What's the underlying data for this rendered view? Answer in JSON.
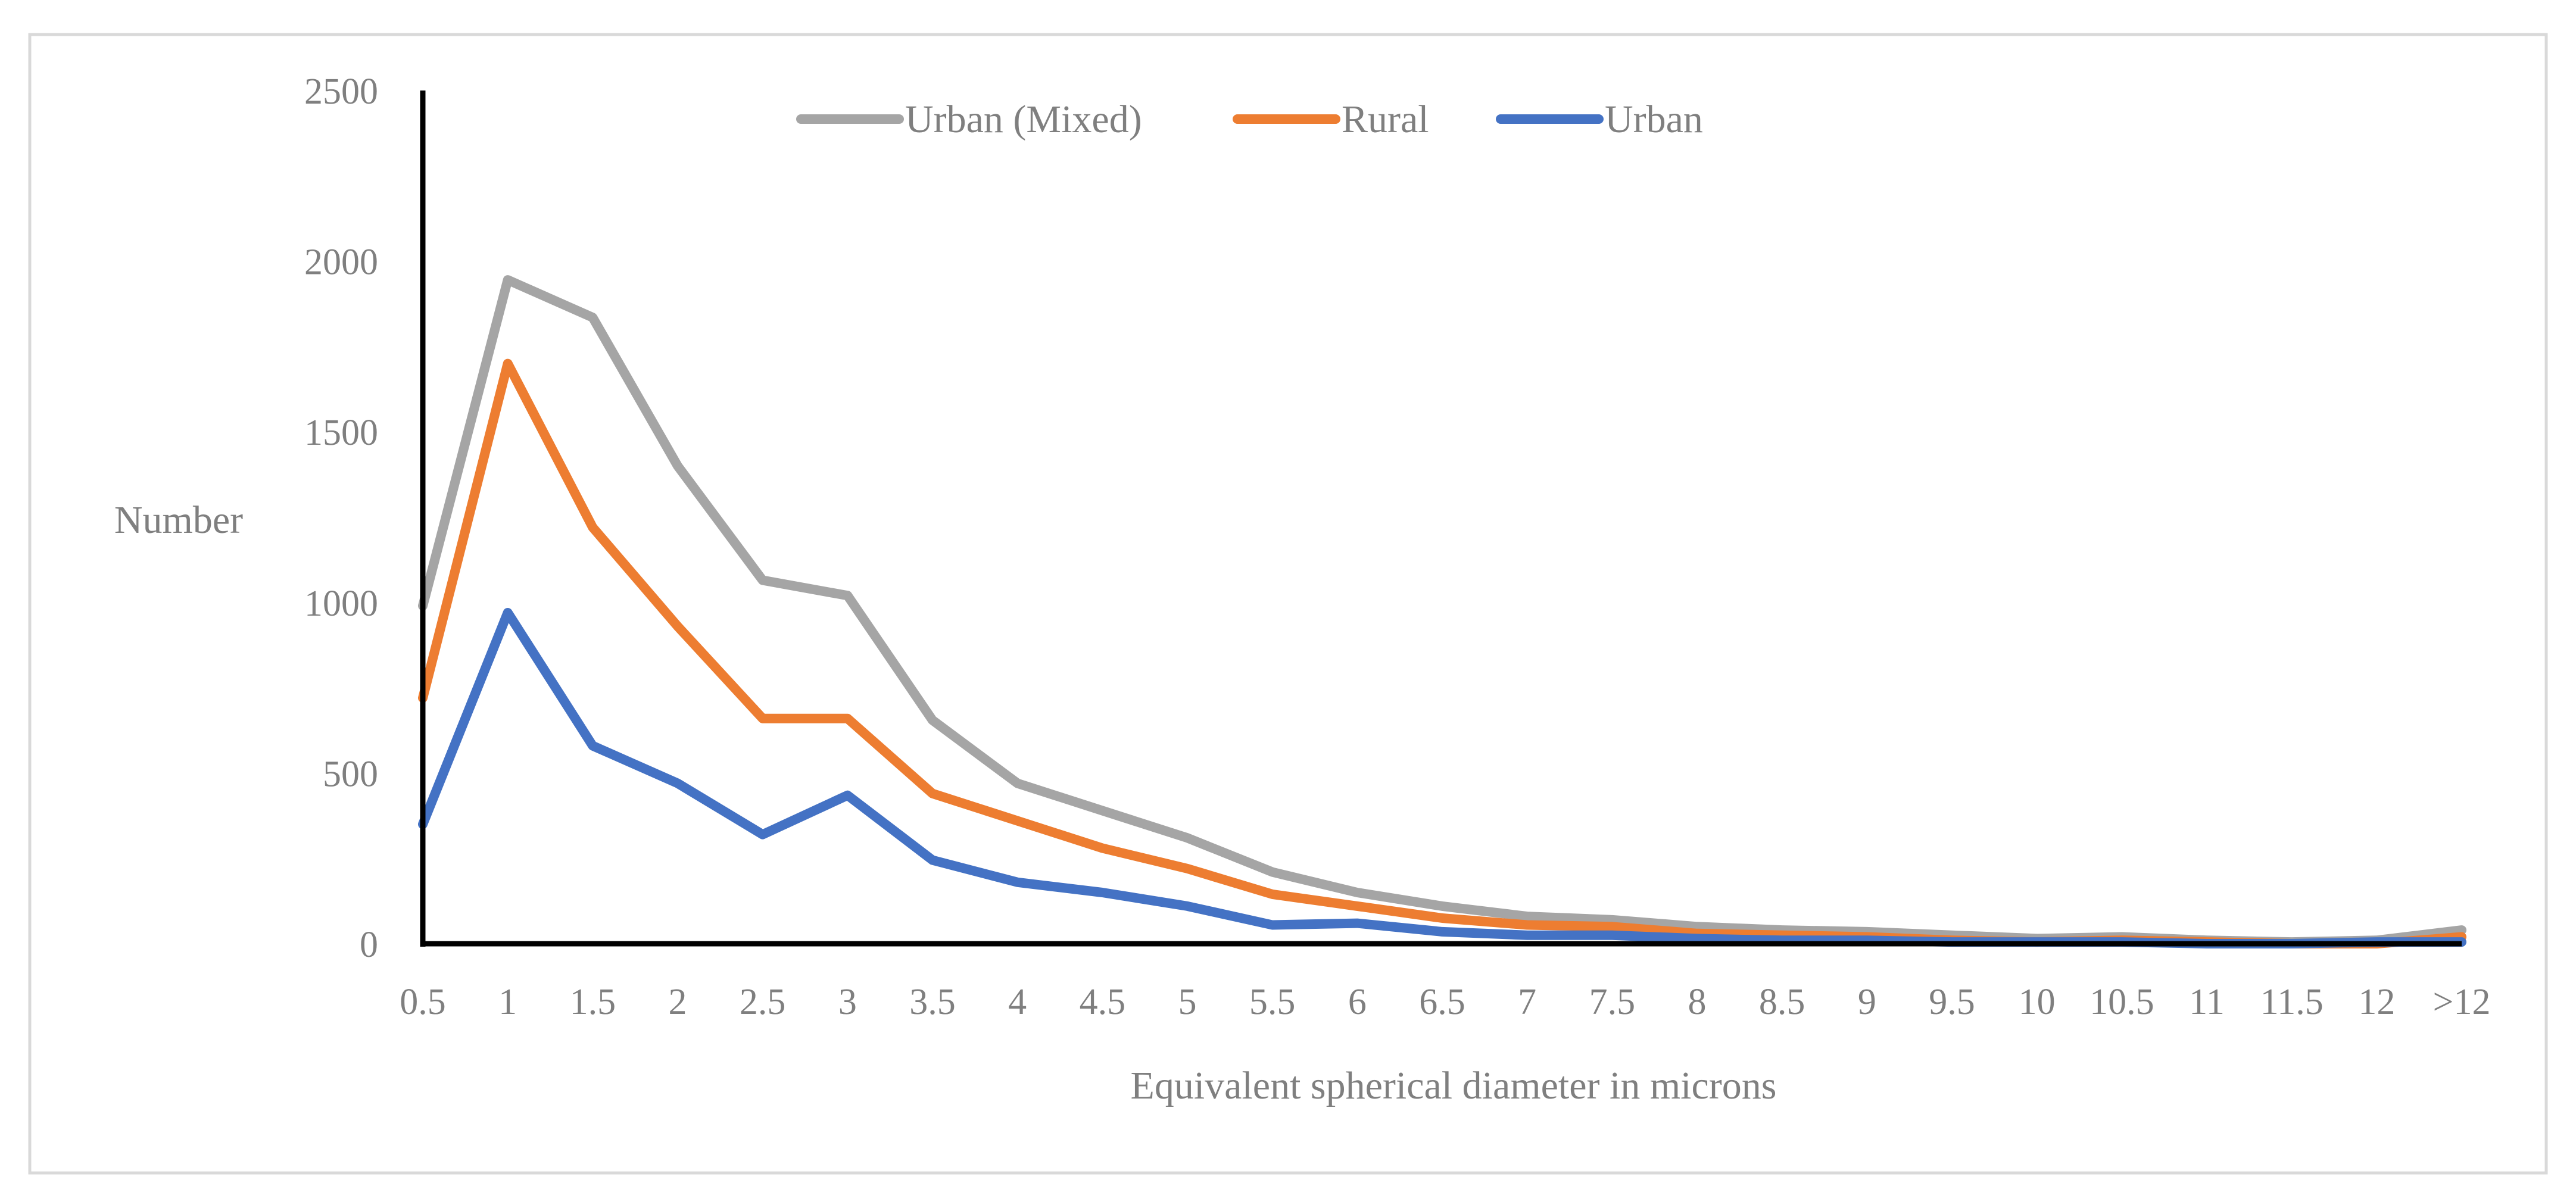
{
  "chart_data": {
    "type": "line",
    "title": "",
    "xlabel": "Equivalent spherical diameter in microns",
    "ylabel": "Number",
    "ylim": [
      0,
      2500
    ],
    "yticks": [
      "0",
      "500",
      "1000",
      "1500",
      "2000",
      "2500"
    ],
    "ytick_values": [
      0,
      500,
      1000,
      1500,
      2000,
      2500
    ],
    "grid": false,
    "legend_position": "top-center",
    "categories": [
      "0.5",
      "1",
      "1.5",
      "2",
      "2.5",
      "3",
      "3.5",
      "4",
      "4.5",
      "5",
      "5.5",
      "6",
      "6.5",
      "7",
      "7.5",
      "8",
      "8.5",
      "9",
      "9.5",
      "10",
      "10.5",
      "11",
      "11.5",
      "12",
      ">12"
    ],
    "series": [
      {
        "name": "Urban (Mixed)",
        "color": "#a5a5a5",
        "values": [
          990,
          1945,
          1835,
          1400,
          1065,
          1020,
          655,
          470,
          390,
          310,
          210,
          150,
          110,
          80,
          70,
          50,
          40,
          35,
          25,
          15,
          20,
          10,
          5,
          10,
          40
        ]
      },
      {
        "name": "Rural",
        "color": "#ed7d31",
        "values": [
          720,
          1700,
          1220,
          930,
          660,
          660,
          440,
          360,
          280,
          220,
          145,
          110,
          75,
          55,
          50,
          30,
          25,
          20,
          10,
          5,
          10,
          5,
          0,
          0,
          20
        ]
      },
      {
        "name": "Urban",
        "color": "#4472c4",
        "values": [
          350,
          970,
          580,
          470,
          320,
          435,
          245,
          180,
          150,
          110,
          55,
          60,
          35,
          25,
          25,
          15,
          10,
          10,
          5,
          5,
          5,
          0,
          0,
          5,
          5
        ]
      }
    ]
  }
}
